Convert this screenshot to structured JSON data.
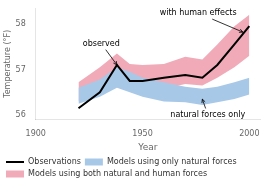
{
  "chart_data": {
    "type": "line",
    "x": [
      1920,
      1930,
      1938,
      1944,
      1950,
      1960,
      1970,
      1978,
      1985,
      1993,
      2000
    ],
    "xlabel": "Year",
    "ylabel": "Temperature (°F)",
    "xlim": [
      1900,
      2005
    ],
    "xticks": [
      1900,
      1950,
      2000
    ],
    "ylim": [
      55.9,
      58.35
    ],
    "yticks": [
      56,
      57,
      58
    ],
    "grid": false,
    "legend": "bottom",
    "series": [
      {
        "name": "Observations",
        "color": "#000000",
        "type": "line",
        "values": [
          56.15,
          56.5,
          57.1,
          56.75,
          56.75,
          56.82,
          56.88,
          56.82,
          57.1,
          57.55,
          57.95
        ]
      },
      {
        "name": "Models using only natural forces",
        "color": "#a8c8e8",
        "type": "band",
        "low": [
          56.25,
          56.4,
          56.6,
          56.5,
          56.4,
          56.3,
          56.28,
          56.22,
          56.28,
          56.35,
          56.45
        ],
        "high": [
          56.6,
          56.78,
          57.05,
          56.95,
          56.82,
          56.72,
          56.62,
          56.58,
          56.62,
          56.72,
          56.82
        ]
      },
      {
        "name": "Models using both natural and human forces",
        "color": "#f0aab8",
        "type": "band",
        "low": [
          56.3,
          56.55,
          56.88,
          56.65,
          56.62,
          56.58,
          56.68,
          56.65,
          56.82,
          57.05,
          57.3
        ],
        "high": [
          56.72,
          57.05,
          57.35,
          57.12,
          57.1,
          57.12,
          57.28,
          57.22,
          57.55,
          57.95,
          58.2
        ]
      }
    ],
    "annotations": [
      {
        "text": "observed",
        "xy": [
          1938,
          57.1
        ],
        "xytext": [
          1922,
          57.48
        ]
      },
      {
        "text": "with human effects",
        "xy": [
          1997,
          57.82
        ],
        "xytext": [
          1958,
          58.15
        ]
      },
      {
        "text": "natural forces only",
        "xy": [
          1978,
          56.35
        ],
        "xytext": [
          1963,
          56.1
        ]
      }
    ]
  }
}
